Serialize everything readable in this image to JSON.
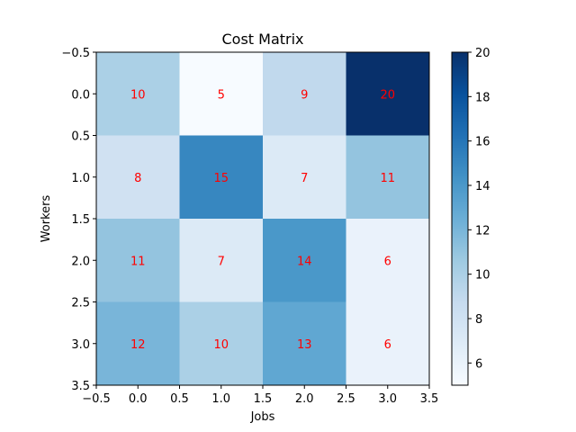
{
  "chart_data": {
    "type": "heatmap",
    "title": "Cost Matrix",
    "xlabel": "Jobs",
    "ylabel": "Workers",
    "x_ticks": [
      "−0.5",
      "0.0",
      "0.5",
      "1.0",
      "1.5",
      "2.0",
      "2.5",
      "3.0",
      "3.5"
    ],
    "y_ticks": [
      "−0.5",
      "0.0",
      "0.5",
      "1.0",
      "1.5",
      "2.0",
      "2.5",
      "3.0",
      "3.5"
    ],
    "xlim": [
      -0.5,
      3.5
    ],
    "ylim": [
      3.5,
      -0.5
    ],
    "values": [
      [
        10,
        5,
        9,
        20
      ],
      [
        8,
        15,
        7,
        11
      ],
      [
        11,
        7,
        14,
        6
      ],
      [
        12,
        10,
        13,
        6
      ]
    ],
    "colormap": "Blues",
    "color_range": [
      5,
      20
    ],
    "colorbar_ticks": [
      "6",
      "8",
      "10",
      "12",
      "14",
      "16",
      "18",
      "20"
    ],
    "annotation_color": "#ff0000",
    "grid": false,
    "colors": {
      "low": "#f7fbff",
      "high": "#08306b"
    }
  }
}
